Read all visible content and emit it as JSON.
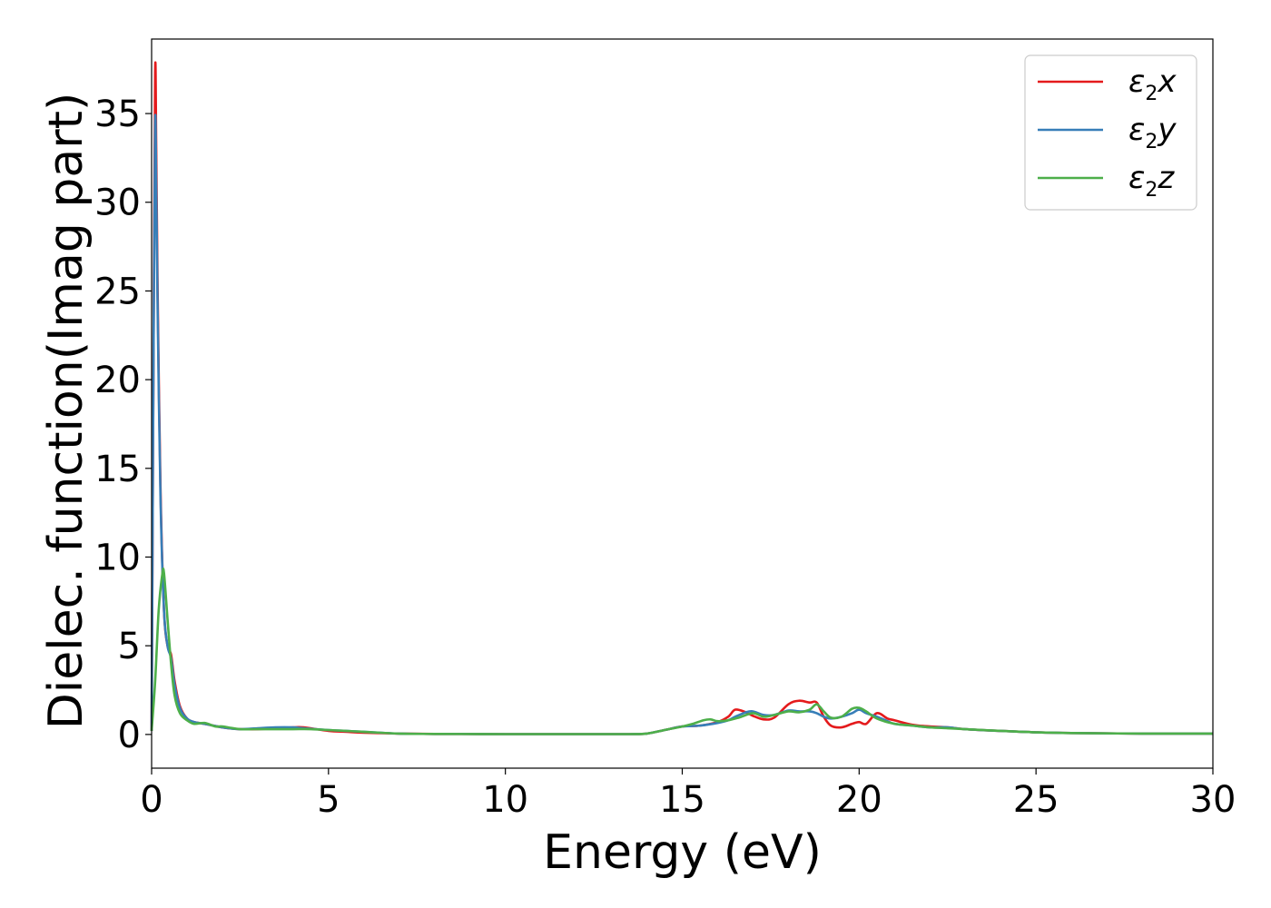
{
  "chart_data": {
    "type": "line",
    "xlabel": "Energy (eV)",
    "ylabel": "Dielec. function(Imag part)",
    "xlim": [
      0,
      30
    ],
    "ylim": [
      -1.9,
      39.2
    ],
    "xticks": [
      "0",
      "5",
      "10",
      "15",
      "20",
      "25",
      "30"
    ],
    "yticks": [
      "0",
      "5",
      "10",
      "15",
      "20",
      "25",
      "30",
      "35"
    ],
    "grid": false,
    "legend_position": "top-right",
    "series": [
      {
        "name": "ε2x",
        "legend_main": "ε",
        "legend_sub": "2",
        "legend_tail": "x",
        "color": "#e41a1c",
        "x": [
          0,
          0.05,
          0.1,
          0.13,
          0.17,
          0.25,
          0.35,
          0.45,
          0.55,
          0.65,
          0.8,
          1.0,
          1.2,
          1.5,
          2.0,
          2.5,
          3.0,
          3.5,
          4.0,
          4.3,
          5.0,
          5.5,
          6.0,
          7.0,
          8.0,
          10.0,
          12.0,
          13.5,
          14.0,
          14.5,
          15.0,
          15.5,
          16.0,
          16.3,
          16.5,
          16.8,
          17.0,
          17.3,
          17.6,
          18.0,
          18.3,
          18.6,
          18.8,
          19.0,
          19.2,
          19.5,
          19.8,
          20.0,
          20.2,
          20.5,
          20.8,
          21.0,
          21.5,
          22.0,
          22.5,
          23.0,
          24.0,
          25.0,
          26.0,
          28.0,
          30.0
        ],
        "y": [
          0.2,
          20.0,
          37.3,
          33.0,
          25.0,
          14.0,
          7.0,
          5.0,
          4.5,
          3.0,
          1.6,
          0.9,
          0.7,
          0.6,
          0.4,
          0.3,
          0.3,
          0.35,
          0.4,
          0.4,
          0.2,
          0.15,
          0.1,
          0.05,
          0.03,
          0.02,
          0.02,
          0.02,
          0.05,
          0.25,
          0.45,
          0.5,
          0.7,
          1.0,
          1.4,
          1.25,
          1.05,
          0.85,
          0.95,
          1.7,
          1.9,
          1.8,
          1.8,
          1.0,
          0.5,
          0.4,
          0.6,
          0.7,
          0.6,
          1.2,
          0.9,
          0.8,
          0.55,
          0.45,
          0.4,
          0.3,
          0.2,
          0.12,
          0.08,
          0.05,
          0.05
        ]
      },
      {
        "name": "ε2y",
        "legend_main": "ε",
        "legend_sub": "2",
        "legend_tail": "y",
        "color": "#377eb8",
        "x": [
          0,
          0.05,
          0.1,
          0.13,
          0.17,
          0.25,
          0.35,
          0.45,
          0.55,
          0.65,
          0.8,
          1.0,
          1.2,
          1.5,
          2.0,
          2.5,
          3.0,
          3.5,
          4.0,
          4.3,
          5.0,
          5.5,
          6.0,
          7.0,
          8.0,
          10.0,
          12.0,
          13.5,
          14.0,
          14.5,
          15.0,
          15.5,
          16.0,
          16.3,
          16.5,
          16.8,
          17.0,
          17.3,
          17.6,
          18.0,
          18.3,
          18.6,
          18.8,
          19.0,
          19.2,
          19.5,
          19.8,
          20.0,
          20.2,
          20.5,
          20.8,
          21.0,
          21.5,
          22.0,
          22.5,
          23.0,
          24.0,
          25.0,
          26.0,
          28.0,
          30.0
        ],
        "y": [
          0.2,
          20.0,
          34.4,
          31.0,
          24.0,
          13.5,
          7.0,
          5.0,
          4.3,
          2.8,
          1.5,
          0.9,
          0.7,
          0.6,
          0.4,
          0.3,
          0.35,
          0.4,
          0.4,
          0.35,
          0.25,
          0.2,
          0.15,
          0.05,
          0.03,
          0.02,
          0.02,
          0.02,
          0.05,
          0.25,
          0.45,
          0.5,
          0.65,
          0.8,
          1.0,
          1.25,
          1.3,
          1.1,
          1.1,
          1.35,
          1.3,
          1.3,
          1.2,
          1.0,
          0.9,
          1.0,
          1.2,
          1.4,
          1.2,
          1.0,
          0.75,
          0.6,
          0.5,
          0.4,
          0.4,
          0.3,
          0.2,
          0.12,
          0.08,
          0.05,
          0.05
        ]
      },
      {
        "name": "ε2z",
        "legend_main": "ε",
        "legend_sub": "2",
        "legend_tail": "z",
        "color": "#4daf4a",
        "x": [
          0,
          0.1,
          0.2,
          0.3,
          0.35,
          0.45,
          0.55,
          0.65,
          0.8,
          1.0,
          1.2,
          1.5,
          1.8,
          2.0,
          2.5,
          3.0,
          3.5,
          4.0,
          4.5,
          5.0,
          5.5,
          6.0,
          7.0,
          8.0,
          10.0,
          12.0,
          13.5,
          14.0,
          14.5,
          15.0,
          15.3,
          15.6,
          15.8,
          16.0,
          16.3,
          16.6,
          17.0,
          17.3,
          17.6,
          18.0,
          18.3,
          18.6,
          18.8,
          19.0,
          19.2,
          19.5,
          19.8,
          20.0,
          20.2,
          20.5,
          21.0,
          21.5,
          22.0,
          22.5,
          23.0,
          24.0,
          25.0,
          26.0,
          28.0,
          30.0
        ],
        "y": [
          0.2,
          3.0,
          7.0,
          9.0,
          9.1,
          6.5,
          4.0,
          2.2,
          1.2,
          0.8,
          0.6,
          0.65,
          0.45,
          0.45,
          0.3,
          0.3,
          0.3,
          0.3,
          0.3,
          0.25,
          0.2,
          0.15,
          0.05,
          0.03,
          0.02,
          0.02,
          0.02,
          0.05,
          0.25,
          0.45,
          0.6,
          0.8,
          0.85,
          0.75,
          0.8,
          0.95,
          1.2,
          1.0,
          1.1,
          1.3,
          1.25,
          1.4,
          1.7,
          1.3,
          0.95,
          1.0,
          1.45,
          1.5,
          1.3,
          0.9,
          0.6,
          0.5,
          0.4,
          0.35,
          0.3,
          0.2,
          0.12,
          0.08,
          0.05,
          0.05
        ]
      }
    ]
  }
}
